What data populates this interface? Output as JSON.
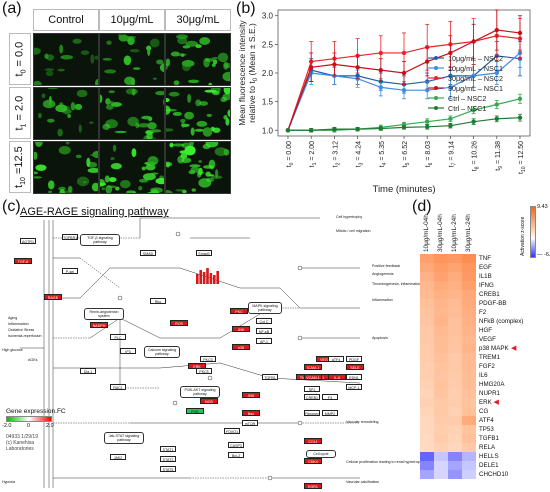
{
  "panels": {
    "a": "(a)",
    "b": "(b)",
    "c": "(c)",
    "d": "(d)"
  },
  "image_grid": {
    "columns": [
      "Control",
      "10μg/mL",
      "30μg/mL"
    ],
    "rows": [
      {
        "label": "t",
        "sub": "0",
        "value": " = 0.0"
      },
      {
        "label": "t",
        "sub": "1",
        "value": " = 2.0"
      },
      {
        "label": "t",
        "sub": "10",
        "value": " =12.5"
      }
    ]
  },
  "chart_data": {
    "type": "line",
    "xlabel": "Time (minutes)",
    "ylabel_line1": "Mean fluorescence intensity",
    "ylabel_line2": "relative to t",
    "ylabel_sub": "0",
    "ylabel_line3": " (Mean ± S.E.)",
    "ylim": [
      0.9,
      3.1
    ],
    "yticks": [
      "1.0",
      "1.5",
      "2.0",
      "2.5",
      "3.0"
    ],
    "categories": [
      {
        "t": "t",
        "s": "0",
        "v": " = 0.00"
      },
      {
        "t": "t",
        "s": "1",
        "v": " = 2.00"
      },
      {
        "t": "t",
        "s": "2",
        "v": " = 3.12"
      },
      {
        "t": "t",
        "s": "3",
        "v": " = 4.24"
      },
      {
        "t": "t",
        "s": "4",
        "v": " = 5.35"
      },
      {
        "t": "t",
        "s": "5",
        "v": " = 6.52"
      },
      {
        "t": "t",
        "s": "6",
        "v": " = 8.03"
      },
      {
        "t": "t",
        "s": "7",
        "v": " = 9.14"
      },
      {
        "t": "t",
        "s": "8",
        "v": " = 10.26"
      },
      {
        "t": "t",
        "s": "9",
        "v": " = 11.38"
      },
      {
        "t": "t",
        "s": "10",
        "v": " = 12.50"
      }
    ],
    "series": [
      {
        "name": "10μg/mL – NSC2",
        "color": "#1f5fa8",
        "values": [
          1.0,
          2.05,
          1.95,
          1.95,
          1.85,
          1.8,
          1.85,
          1.95,
          1.95,
          2.3,
          2.25
        ],
        "err": [
          0,
          0.2,
          0.15,
          0.15,
          0.15,
          0.15,
          0.15,
          0.15,
          0.2,
          0.25,
          0.3
        ]
      },
      {
        "name": "10μg/mL – NSC1",
        "color": "#3a8ee6",
        "values": [
          1.0,
          2.0,
          1.95,
          1.9,
          1.75,
          1.7,
          1.7,
          1.75,
          1.95,
          2.0,
          2.35
        ],
        "err": [
          0,
          0.2,
          0.15,
          0.15,
          0.15,
          0.15,
          0.15,
          0.2,
          0.2,
          0.2,
          0.25
        ]
      },
      {
        "name": "30μg/mL – NSC2",
        "color": "#e8262b",
        "values": [
          1.0,
          2.2,
          2.25,
          2.3,
          2.35,
          2.35,
          2.45,
          2.5,
          2.55,
          2.65,
          2.6
        ],
        "err": [
          0,
          0.35,
          0.3,
          0.3,
          0.3,
          0.35,
          0.4,
          0.4,
          0.4,
          0.45,
          0.35
        ]
      },
      {
        "name": "30μg/mL – NSC1",
        "color": "#c71017",
        "values": [
          1.0,
          2.1,
          2.15,
          2.1,
          2.05,
          2.0,
          2.2,
          2.35,
          2.55,
          2.75,
          2.7
        ],
        "err": [
          0,
          0.25,
          0.2,
          0.2,
          0.2,
          0.2,
          0.25,
          0.3,
          0.3,
          0.35,
          0.3
        ]
      },
      {
        "name": "Ctrl – NSC2",
        "color": "#36a852",
        "values": [
          1.0,
          1.0,
          1.0,
          1.02,
          1.05,
          1.1,
          1.15,
          1.2,
          1.35,
          1.45,
          1.55
        ],
        "err": [
          0,
          0.03,
          0.03,
          0.03,
          0.04,
          0.04,
          0.05,
          0.05,
          0.06,
          0.07,
          0.08
        ]
      },
      {
        "name": "Ctrl – NSC1",
        "color": "#1e7a33",
        "values": [
          1.0,
          1.0,
          1.02,
          1.02,
          1.03,
          1.05,
          1.06,
          1.08,
          1.15,
          1.2,
          1.22
        ],
        "err": [
          0,
          0.03,
          0.03,
          0.03,
          0.03,
          0.03,
          0.04,
          0.04,
          0.05,
          0.05,
          0.06
        ]
      }
    ]
  },
  "pathway": {
    "title": "AGE-RAGE signaling pathway",
    "legend_title": "Gene expression.FC",
    "legend_ticks": [
      "-2.0",
      "0",
      "2.0"
    ],
    "footer": [
      "04933 1/29/19",
      "(c) Kanehisa",
      "Laboratories"
    ],
    "outputs": [
      "Cell hypertrophy",
      "Mitotic / cell migration",
      "Positive feedback",
      "Angiogenesis",
      "Thrombogenesis, inflammation, atherosclerosis",
      "Inflammation",
      "Apoptosis",
      "Vascular remodeling",
      "Cellular proliferation leading to renal hypertrophy",
      "Vascular calcification"
    ],
    "left_labels": [
      "Aging",
      "Inflammation",
      "Oxidative Stress",
      "Ischemia-reperfusion",
      "High glucose",
      "AGEs",
      "Hypoxia"
    ],
    "boxes": [
      "TGF-β signaling pathway",
      "Renin-angiotensin system",
      "Calcium signaling pathway",
      "MAPK signaling pathway",
      "PI3K-AKT signaling pathway",
      "Jak-STAT signaling pathway",
      "Cell cycle"
    ],
    "genes_red": [
      "TGF-β",
      "RAGE",
      "NADPH",
      "ROS",
      "PKC",
      "p38",
      "ERK",
      "JNK",
      "TNF-α",
      "IL-1",
      "IL-6",
      "VEGF",
      "ICAM-1",
      "SELE",
      "VCAM-1",
      "NOS",
      "Bax",
      "JNK",
      "CDK4",
      "EGR1",
      "COL1"
    ],
    "genes_green": [
      "PI3K"
    ],
    "genes_white": [
      "TGFBR1",
      "SMAD",
      "Smad3",
      "PLC",
      "IP3",
      "Dia-1",
      "RAC1",
      "Rho",
      "STAT1",
      "STAT3",
      "STAT5",
      "JAK2",
      "FOXO1",
      "CASP3",
      "Bcl-2",
      "PKCβ",
      "PKCδ",
      "TGFB1",
      "Cyt C",
      "NF-κB",
      "AP-1",
      "SP1",
      "CREB1",
      "F3",
      "EDN1",
      "MCP-1",
      "P-sel",
      "AGTR1",
      "mTOR",
      "ATF4",
      "PDGF",
      "Fibronectin",
      "MMP2"
    ]
  },
  "heatmap": {
    "columns": [
      "10μg/mL-04h",
      "30μg/mL-04h",
      "10μg/mL-24h",
      "30μg/mL-24h"
    ],
    "scale_label": "Activation z-score",
    "scale_max": "9.43",
    "scale_min": "-6.22",
    "marker": "◀",
    "rows": [
      {
        "name": "TNF",
        "v": [
          5.8,
          6.5,
          6.2,
          7.0
        ]
      },
      {
        "name": "EGF",
        "v": [
          5.2,
          6.0,
          5.5,
          6.4
        ]
      },
      {
        "name": "IL1B",
        "v": [
          4.5,
          5.6,
          5.0,
          6.2
        ]
      },
      {
        "name": "IFNG",
        "v": [
          4.2,
          5.0,
          4.6,
          5.8
        ]
      },
      {
        "name": "CREB1",
        "v": [
          4.0,
          4.6,
          4.3,
          5.2
        ]
      },
      {
        "name": "PDGF-BB",
        "v": [
          3.6,
          4.4,
          3.9,
          5.0
        ]
      },
      {
        "name": "F2",
        "v": [
          3.4,
          4.2,
          3.8,
          4.8
        ]
      },
      {
        "name": "NFkB (complex)",
        "v": [
          3.2,
          4.4,
          3.6,
          4.6
        ]
      },
      {
        "name": "HGF",
        "v": [
          3.0,
          4.0,
          3.5,
          4.4
        ]
      },
      {
        "name": "VEGF",
        "v": [
          3.0,
          3.8,
          3.4,
          4.2
        ]
      },
      {
        "name": "p38 MAPK",
        "v": [
          2.8,
          3.8,
          3.2,
          4.4
        ],
        "marked": true
      },
      {
        "name": "TREM1",
        "v": [
          2.8,
          3.6,
          3.0,
          4.0
        ]
      },
      {
        "name": "FGF2",
        "v": [
          2.6,
          3.4,
          3.0,
          4.0
        ]
      },
      {
        "name": "IL6",
        "v": [
          2.6,
          3.2,
          2.9,
          3.8
        ]
      },
      {
        "name": "HMG20A",
        "v": [
          2.4,
          3.4,
          2.8,
          3.8
        ]
      },
      {
        "name": "NUPR1",
        "v": [
          2.2,
          3.2,
          2.6,
          3.6
        ]
      },
      {
        "name": "ERK",
        "v": [
          2.4,
          3.0,
          2.7,
          3.4
        ],
        "marked": true
      },
      {
        "name": "CG",
        "v": [
          2.2,
          3.0,
          2.5,
          3.6
        ]
      },
      {
        "name": "ATF4",
        "v": [
          2.0,
          2.8,
          2.8,
          5.0
        ]
      },
      {
        "name": "TP53",
        "v": [
          2.0,
          2.6,
          2.4,
          3.4
        ]
      },
      {
        "name": "TGFB1",
        "v": [
          1.8,
          2.8,
          2.2,
          3.6
        ]
      },
      {
        "name": "RELA",
        "v": [
          1.8,
          2.4,
          2.0,
          3.0
        ]
      },
      {
        "name": "HELLS",
        "v": [
          -4.5,
          -1.5,
          -3.5,
          -2.0
        ]
      },
      {
        "name": "DELE1",
        "v": [
          -3.5,
          -1.0,
          -2.5,
          -1.5
        ]
      },
      {
        "name": "CHCHD10",
        "v": [
          -2.5,
          -1.0,
          -3.0,
          -1.2
        ]
      }
    ]
  }
}
